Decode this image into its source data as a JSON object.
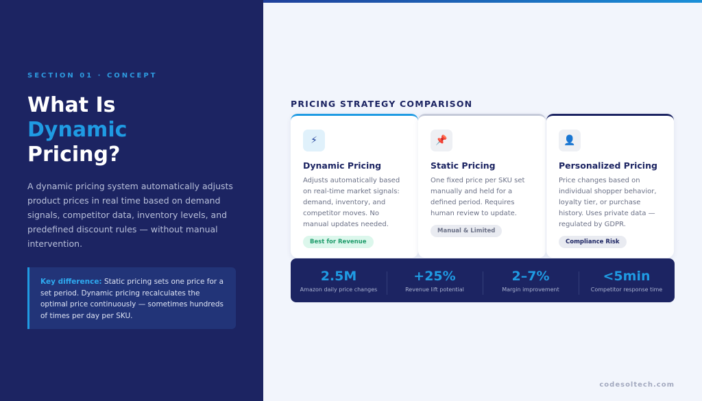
{
  "left": {
    "eyebrow": "SECTION 01 · CONCEPT",
    "title_line1": "What Is",
    "title_accent": "Dynamic",
    "title_line3": "Pricing?",
    "description": "A dynamic pricing system automatically adjusts product prices in real time based on demand signals, competitor data, inventory levels, and predefined discount rules — without manual intervention.",
    "callout_label": "Key difference:",
    "callout_text": " Static pricing sets one price for a set period. Dynamic pricing recalculates the optimal price continuously — sometimes hundreds of times per day per SKU."
  },
  "comparison": {
    "title": "PRICING STRATEGY COMPARISON",
    "cards": [
      {
        "icon": "lightning-icon",
        "glyph": "⚡",
        "title": "Dynamic Pricing",
        "description": "Adjusts automatically based on real-time market signals: demand, inventory, and competitor moves. No manual updates needed.",
        "badge": "Best for Revenue"
      },
      {
        "icon": "pin-icon",
        "glyph": "📌",
        "title": "Static Pricing",
        "description": "One fixed price per SKU set manually and held for a defined period. Requires human review to update.",
        "badge": "Manual & Limited"
      },
      {
        "icon": "user-icon",
        "glyph": "👤",
        "title": "Personalized Pricing",
        "description": "Price changes based on individual shopper behavior, loyalty tier, or purchase history. Uses private data — regulated by GDPR.",
        "badge": "Compliance Risk"
      }
    ]
  },
  "stats": [
    {
      "value": "2.5M",
      "label": "Amazon daily price changes"
    },
    {
      "value": "+25%",
      "label": "Revenue lift potential"
    },
    {
      "value": "2–7%",
      "label": "Margin improvement"
    },
    {
      "value": "<5min",
      "label": "Competitor response time"
    }
  ],
  "footer": "codesoltech.com",
  "colors": {
    "navy": "#1c2462",
    "accent": "#1f9be3",
    "background": "#f2f5fc"
  }
}
